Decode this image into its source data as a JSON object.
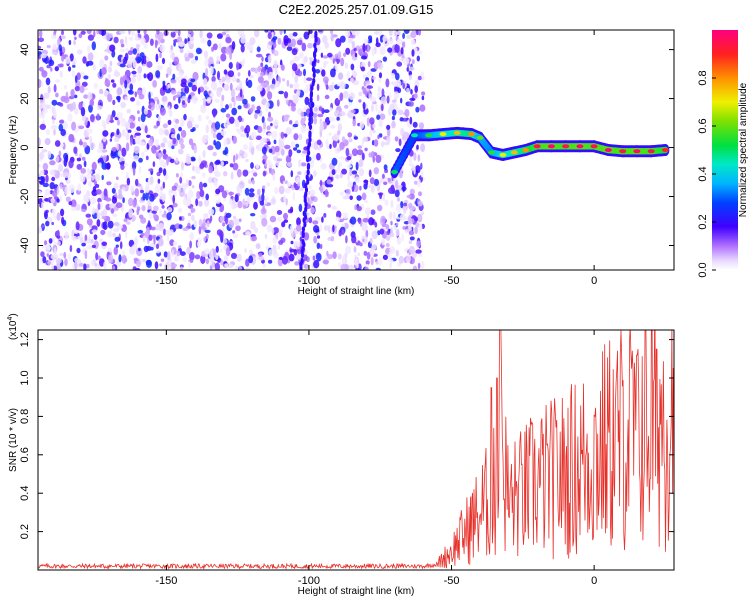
{
  "chart_data": [
    {
      "type": "heatmap",
      "title": "C2E2.2025.257.01.09.G15",
      "xlabel": "Height of straight line (km)",
      "ylabel": "Frequency (Hz)",
      "xlim": [
        -195,
        28
      ],
      "ylim": [
        -50,
        48
      ],
      "x_ticks": [
        -150,
        -100,
        -50,
        0
      ],
      "x_tick_labels": [
        "-150",
        "-100",
        "-50",
        "0"
      ],
      "y_ticks": [
        -40,
        -20,
        0,
        20,
        40
      ],
      "y_tick_labels": [
        "-40",
        "-20",
        "0",
        "20",
        "40"
      ],
      "noise_region": {
        "x_from": -195,
        "x_to": -62,
        "description_values": {
          "amplitude_range": [
            0.02,
            0.25
          ]
        }
      },
      "signal_track": [
        {
          "x": -70,
          "y": -10,
          "amp": 0.5
        },
        {
          "x": -63,
          "y": 5,
          "amp": 0.45
        },
        {
          "x": -58,
          "y": 5,
          "amp": 0.55
        },
        {
          "x": -53,
          "y": 5.5,
          "amp": 0.7
        },
        {
          "x": -48,
          "y": 6,
          "amp": 0.75
        },
        {
          "x": -43,
          "y": 5.5,
          "amp": 0.8
        },
        {
          "x": -40,
          "y": 4,
          "amp": 0.6
        },
        {
          "x": -36,
          "y": -2,
          "amp": 0.55
        },
        {
          "x": -32,
          "y": -3,
          "amp": 0.7
        },
        {
          "x": -28,
          "y": -2,
          "amp": 0.75
        },
        {
          "x": -24,
          "y": -1,
          "amp": 0.8
        },
        {
          "x": -20,
          "y": 0.5,
          "amp": 0.95
        },
        {
          "x": -15,
          "y": 0.5,
          "amp": 0.98
        },
        {
          "x": -10,
          "y": 0.5,
          "amp": 0.95
        },
        {
          "x": -5,
          "y": 0.5,
          "amp": 0.98
        },
        {
          "x": 0,
          "y": 0.5,
          "amp": 0.95
        },
        {
          "x": 5,
          "y": -1,
          "amp": 0.98
        },
        {
          "x": 10,
          "y": -1.5,
          "amp": 0.95
        },
        {
          "x": 15,
          "y": -1.5,
          "amp": 0.98
        },
        {
          "x": 20,
          "y": -1.5,
          "amp": 0.95
        },
        {
          "x": 25,
          "y": -1,
          "amp": 0.9
        }
      ]
    },
    {
      "type": "line",
      "xlabel": "Height of straight line (km)",
      "ylabel": "SNR (10 * v/v)",
      "y_scale_label": "(x10",
      "y_scale_exponent": "4",
      "xlim": [
        -195,
        28
      ],
      "ylim": [
        0,
        1.25
      ],
      "x_ticks": [
        -150,
        -100,
        -50,
        0
      ],
      "x_tick_labels": [
        "-150",
        "-100",
        "-50",
        "0"
      ],
      "y_ticks": [
        0.2,
        0.4,
        0.6,
        0.8,
        1.0,
        1.2
      ],
      "y_tick_labels": [
        "0.2",
        "0.4",
        "0.6",
        "0.8",
        "1.0",
        "1.2"
      ],
      "series": [
        {
          "name": "SNR",
          "color": "#e8302a",
          "trend": [
            {
              "x": -195,
              "y": 0.02
            },
            {
              "x": -60,
              "y": 0.02
            },
            {
              "x": -55,
              "y": 0.03
            },
            {
              "x": -50,
              "y": 0.1
            },
            {
              "x": -45,
              "y": 0.2
            },
            {
              "x": -40,
              "y": 0.3
            },
            {
              "x": -35,
              "y": 0.4
            },
            {
              "x": -32,
              "y": 0.6
            },
            {
              "x": -30,
              "y": 0.35
            },
            {
              "x": -25,
              "y": 0.4
            },
            {
              "x": -20,
              "y": 0.45
            },
            {
              "x": -10,
              "y": 0.5
            },
            {
              "x": 0,
              "y": 0.6
            },
            {
              "x": 10,
              "y": 0.7
            },
            {
              "x": 20,
              "y": 0.8
            },
            {
              "x": 28,
              "y": 0.85
            }
          ],
          "peaks": [
            {
              "x": -33,
              "y": 1.25
            },
            {
              "x": -34,
              "y": 1.0
            },
            {
              "x": -36,
              "y": 0.95
            },
            {
              "x": 15,
              "y": 1.12
            },
            {
              "x": 22,
              "y": 1.15
            },
            {
              "x": 28,
              "y": 1.05
            }
          ]
        }
      ]
    }
  ],
  "colorbar": {
    "label": "Normalized spectral amplitude",
    "ticks": [
      0.0,
      0.2,
      0.4,
      0.6,
      0.8
    ],
    "tick_labels": [
      "0.0",
      "0.2",
      "0.4",
      "0.6",
      "0.8"
    ],
    "range": [
      0,
      1
    ]
  }
}
